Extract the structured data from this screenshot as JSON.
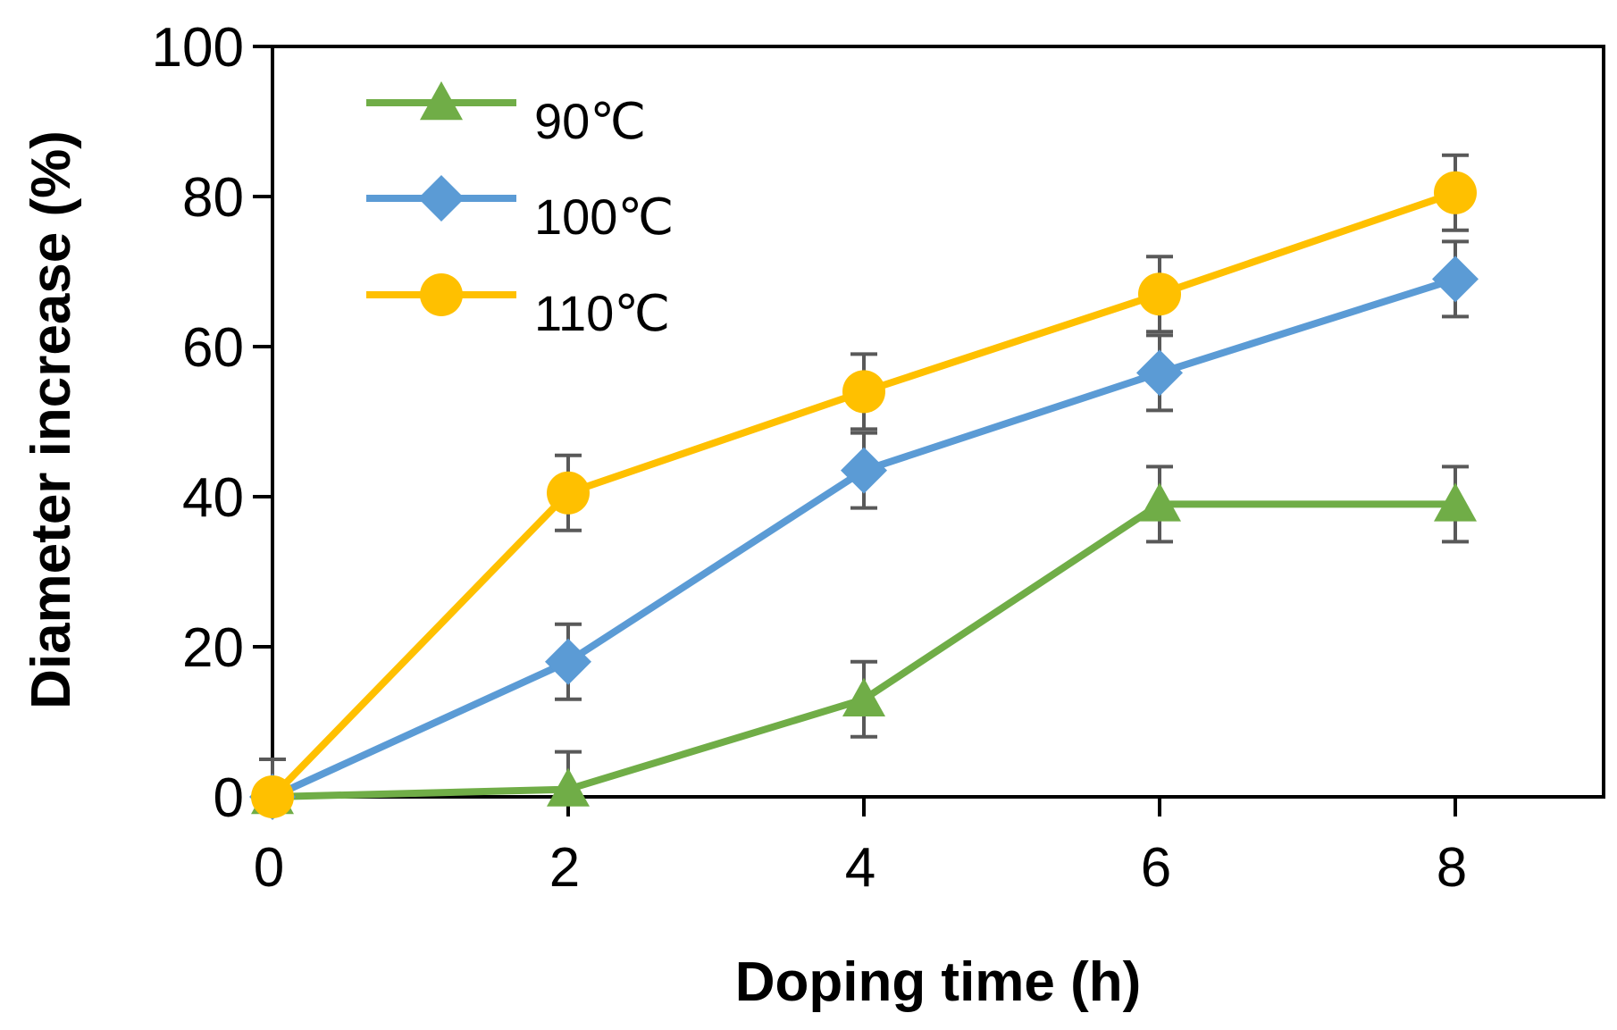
{
  "chart_data": {
    "type": "line",
    "title": "",
    "xlabel": "Doping time (h)",
    "ylabel": "Diameter increase (%)",
    "xlim": [
      0,
      9
    ],
    "ylim": [
      0,
      100
    ],
    "xticks": [
      0,
      2,
      4,
      6,
      8
    ],
    "yticks": [
      0,
      20,
      40,
      60,
      80,
      100
    ],
    "x": [
      0,
      2,
      4,
      6,
      8
    ],
    "legend_position": "top-left",
    "series": [
      {
        "name": "90℃",
        "marker": "triangle",
        "color": "#70ad47",
        "values": [
          0,
          1,
          13,
          39,
          39
        ],
        "errors": [
          5,
          5,
          5,
          5,
          5
        ]
      },
      {
        "name": "100℃",
        "marker": "diamond",
        "color": "#5b9bd5",
        "values": [
          0,
          18,
          43.5,
          56.5,
          69
        ],
        "errors": [
          5,
          5,
          5,
          5,
          5
        ]
      },
      {
        "name": "110℃",
        "marker": "circle",
        "color": "#ffc000",
        "values": [
          0,
          40.5,
          54,
          67,
          80.5
        ],
        "errors": [
          5,
          5,
          5,
          5,
          5
        ]
      }
    ]
  }
}
